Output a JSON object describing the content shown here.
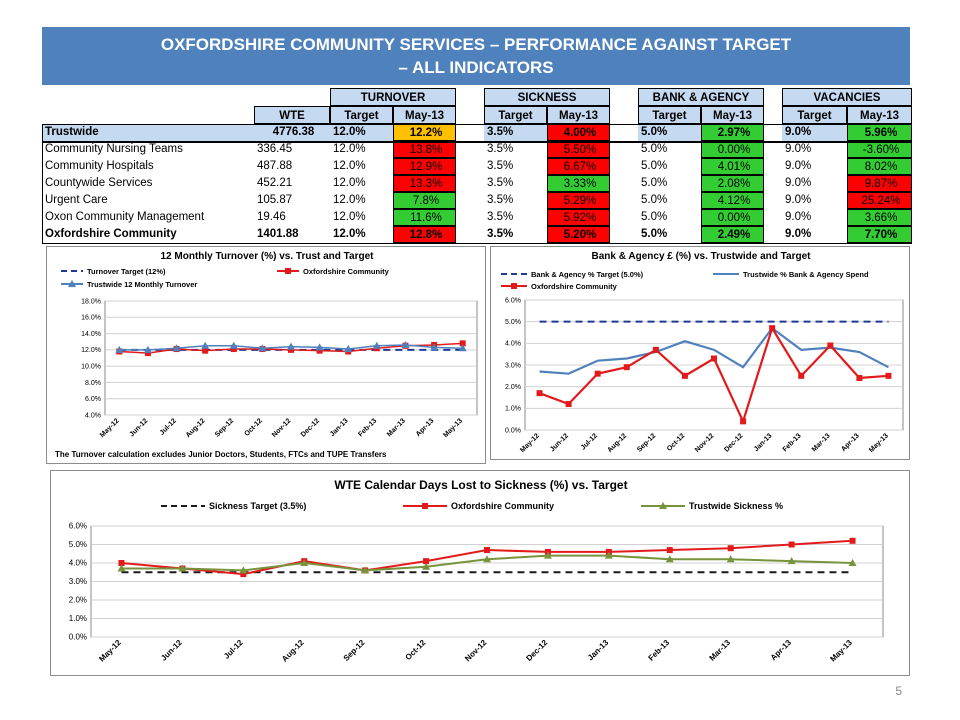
{
  "header": {
    "title_line1": "OXFORDSHIRE COMMUNITY SERVICES – PERFORMANCE AGAINST TARGET",
    "title_line2": "– ALL INDICATORS"
  },
  "colors": {
    "red": "#ff0000",
    "green": "#33cc33",
    "amber": "#ffc000",
    "header_blue": "#4f81bd"
  },
  "table": {
    "groups": [
      "TURNOVER",
      "SICKNESS",
      "BANK & AGENCY",
      "VACANCIES"
    ],
    "col_headers": {
      "wte": "WTE",
      "target": "Target",
      "month": "May-13"
    },
    "rows": [
      {
        "label": "Trustwide",
        "wte": "4776.38",
        "to_target": "12.0%",
        "to_value": "12.2%",
        "to_status": "amber",
        "sk_target": "3.5%",
        "sk_value": "4.00%",
        "sk_status": "red",
        "ba_target": "5.0%",
        "ba_value": "2.97%",
        "ba_status": "green",
        "va_target": "9.0%",
        "va_value": "5.96%",
        "va_status": "green"
      },
      {
        "label": "Community Nursing Teams",
        "wte": "336.45",
        "to_target": "12.0%",
        "to_value": "13.8%",
        "to_status": "red",
        "sk_target": "3.5%",
        "sk_value": "5.50%",
        "sk_status": "red",
        "ba_target": "5.0%",
        "ba_value": "0.00%",
        "ba_status": "green",
        "va_target": "9.0%",
        "va_value": "-3.60%",
        "va_status": "green"
      },
      {
        "label": "Community Hospitals",
        "wte": "487.88",
        "to_target": "12.0%",
        "to_value": "12.9%",
        "to_status": "red",
        "sk_target": "3.5%",
        "sk_value": "6.67%",
        "sk_status": "red",
        "ba_target": "5.0%",
        "ba_value": "4.01%",
        "ba_status": "green",
        "va_target": "9.0%",
        "va_value": "8.02%",
        "va_status": "green"
      },
      {
        "label": "Countywide Services",
        "wte": "452.21",
        "to_target": "12.0%",
        "to_value": "13.3%",
        "to_status": "red",
        "sk_target": "3.5%",
        "sk_value": "3.33%",
        "sk_status": "green",
        "ba_target": "5.0%",
        "ba_value": "2.08%",
        "ba_status": "green",
        "va_target": "9.0%",
        "va_value": "9.87%",
        "va_status": "red"
      },
      {
        "label": "Urgent Care",
        "wte": "105.87",
        "to_target": "12.0%",
        "to_value": "7.8%",
        "to_status": "green",
        "sk_target": "3.5%",
        "sk_value": "5.29%",
        "sk_status": "red",
        "ba_target": "5.0%",
        "ba_value": "4.12%",
        "ba_status": "green",
        "va_target": "9.0%",
        "va_value": "25.24%",
        "va_status": "red"
      },
      {
        "label": "Oxon Community Management",
        "wte": "19.46",
        "to_target": "12.0%",
        "to_value": "11.6%",
        "to_status": "green",
        "sk_target": "3.5%",
        "sk_value": "5.92%",
        "sk_status": "red",
        "ba_target": "5.0%",
        "ba_value": "0.00%",
        "ba_status": "green",
        "va_target": "9.0%",
        "va_value": "3.66%",
        "va_status": "green"
      },
      {
        "label": "Oxfordshire Community",
        "wte": "1401.88",
        "to_target": "12.0%",
        "to_value": "12.8%",
        "to_status": "red",
        "sk_target": "3.5%",
        "sk_value": "5.20%",
        "sk_status": "red",
        "ba_target": "5.0%",
        "ba_value": "2.49%",
        "ba_status": "green",
        "va_target": "9.0%",
        "va_value": "7.70%",
        "va_status": "green"
      }
    ]
  },
  "chart_data": [
    {
      "type": "line",
      "title": "12 Monthly Turnover (%) vs. Trust and Target",
      "categories": [
        "May-12",
        "Jun-12",
        "Jul-12",
        "Aug-12",
        "Sep-12",
        "Oct-12",
        "Nov-12",
        "Dec-12",
        "Jan-13",
        "Feb-13",
        "Mar-13",
        "Apr-13",
        "May-13"
      ],
      "ylim": [
        4.0,
        18.0
      ],
      "yticks": [
        "4.0%",
        "6.0%",
        "8.0%",
        "10.0%",
        "12.0%",
        "14.0%",
        "16.0%",
        "18.0%"
      ],
      "series": [
        {
          "name": "Turnover Target (12%)",
          "color": "#1f3a93",
          "dashed": true,
          "values": [
            12,
            12,
            12,
            12,
            12,
            12,
            12,
            12,
            12,
            12,
            12,
            12,
            12
          ]
        },
        {
          "name": "Oxfordshire Community",
          "color": "#e31a1c",
          "marker": "square",
          "values": [
            11.8,
            11.6,
            12.1,
            11.9,
            12.1,
            12.1,
            12.0,
            11.9,
            11.8,
            12.2,
            12.5,
            12.6,
            12.8
          ]
        },
        {
          "name": "Trustwide 12 Monthly Turnover",
          "color": "#4f81bd",
          "marker": "triangle",
          "values": [
            12.0,
            12.0,
            12.2,
            12.5,
            12.5,
            12.2,
            12.4,
            12.3,
            12.1,
            12.5,
            12.6,
            12.3,
            12.2
          ]
        }
      ],
      "footnote": "The Turnover calculation excludes Junior Doctors, Students, FTCs and TUPE Transfers"
    },
    {
      "type": "line",
      "title": "Bank & Agency £ (%) vs. Trustwide and Target",
      "categories": [
        "May-12",
        "Jun-12",
        "Jul-12",
        "Aug-12",
        "Sep-12",
        "Oct-12",
        "Nov-12",
        "Dec-12",
        "Jan-13",
        "Feb-13",
        "Mar-13",
        "Apr-13",
        "May-13"
      ],
      "ylim": [
        0.0,
        6.0
      ],
      "yticks": [
        "0.0%",
        "1.0%",
        "2.0%",
        "3.0%",
        "4.0%",
        "5.0%",
        "6.0%"
      ],
      "series": [
        {
          "name": "Bank & Agency % Target (5.0%)",
          "color": "#1f3a93",
          "dashed": true,
          "values": [
            5,
            5,
            5,
            5,
            5,
            5,
            5,
            5,
            5,
            5,
            5,
            5,
            5
          ]
        },
        {
          "name": "Trustwide % Bank & Agency Spend",
          "color": "#4f81bd",
          "marker": "none",
          "values": [
            2.7,
            2.6,
            3.2,
            3.3,
            3.6,
            4.1,
            3.7,
            2.9,
            4.7,
            3.7,
            3.8,
            3.6,
            2.9
          ]
        },
        {
          "name": "Oxfordshire Community",
          "color": "#e31a1c",
          "marker": "square",
          "values": [
            1.7,
            1.2,
            2.6,
            2.9,
            3.7,
            2.5,
            3.3,
            0.4,
            4.7,
            2.5,
            3.9,
            2.4,
            2.5
          ]
        }
      ]
    },
    {
      "type": "line",
      "title": "WTE Calendar Days Lost to Sickness (%) vs. Target",
      "categories": [
        "May-12",
        "Jun-12",
        "Jul-12",
        "Aug-12",
        "Sep-12",
        "Oct-12",
        "Nov-12",
        "Dec-12",
        "Jan-13",
        "Feb-13",
        "Mar-13",
        "Apr-13",
        "May-13"
      ],
      "ylim": [
        0.0,
        6.0
      ],
      "yticks": [
        "0.0%",
        "1.0%",
        "2.0%",
        "3.0%",
        "4.0%",
        "5.0%",
        "6.0%"
      ],
      "series": [
        {
          "name": "Sickness Target (3.5%)",
          "color": "#1a1a1a",
          "dashed": true,
          "values": [
            3.5,
            3.5,
            3.5,
            3.5,
            3.5,
            3.5,
            3.5,
            3.5,
            3.5,
            3.5,
            3.5,
            3.5,
            3.5
          ]
        },
        {
          "name": "Oxfordshire Community",
          "color": "#e31a1c",
          "marker": "square",
          "values": [
            4.0,
            3.7,
            3.4,
            4.1,
            3.6,
            4.1,
            4.7,
            4.6,
            4.6,
            4.7,
            4.8,
            5.0,
            5.2
          ]
        },
        {
          "name": "Trustwide Sickness %",
          "color": "#77933c",
          "marker": "triangle",
          "values": [
            3.7,
            3.7,
            3.6,
            4.0,
            3.6,
            3.8,
            4.2,
            4.4,
            4.4,
            4.2,
            4.2,
            4.1,
            4.0
          ]
        }
      ]
    }
  ],
  "page_number": "5"
}
